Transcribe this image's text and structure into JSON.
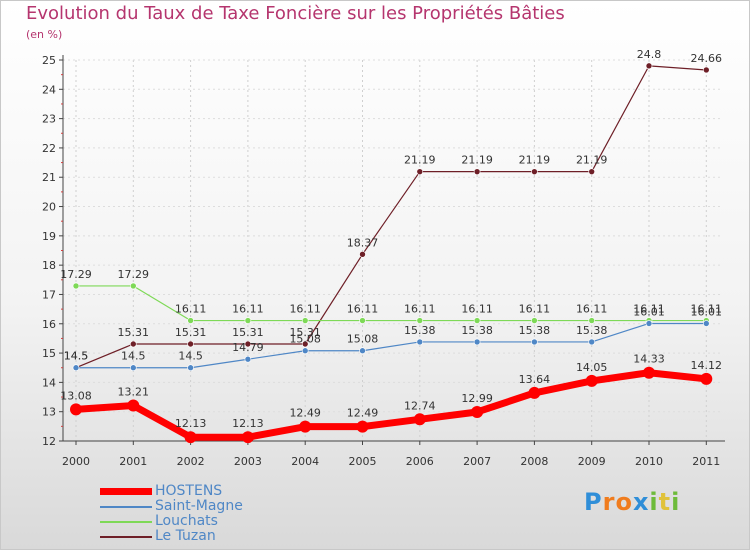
{
  "title": "Evolution du Taux de Taxe Foncière sur les Propriétés Bâties",
  "unit": "(en %)",
  "logo": {
    "text": "Proxiti",
    "letters": [
      "P",
      "r",
      "o",
      "x",
      "i",
      "t",
      "i"
    ],
    "colors": [
      "#2f8ed8",
      "#f07c1e",
      "#f07c1e",
      "#2f8ed8",
      "#6dbb3a",
      "#e0c23a",
      "#6dbb3a"
    ]
  },
  "chart_data": {
    "type": "line",
    "title": "Evolution du Taux de Taxe Foncière sur les Propriétés Bâties",
    "ylabel": "(en %)",
    "xlabel": "",
    "ylim": [
      12,
      25
    ],
    "yticks": [
      "12",
      "13",
      "14",
      "15",
      "16",
      "17",
      "18",
      "19",
      "20",
      "21",
      "22",
      "23",
      "24",
      "25"
    ],
    "categories": [
      "2000",
      "2001",
      "2002",
      "2003",
      "2004",
      "2005",
      "2006",
      "2007",
      "2008",
      "2009",
      "2010",
      "2011"
    ],
    "series": [
      {
        "name": "HOSTENS",
        "color": "#ff0000",
        "values": [
          13.08,
          13.21,
          12.13,
          12.13,
          12.49,
          12.49,
          12.74,
          12.99,
          13.64,
          14.05,
          14.33,
          14.12
        ],
        "labels": [
          "13.08",
          "13.21",
          "12.13",
          "12.13",
          "12.49",
          "12.49",
          "12.74",
          "12.99",
          "13.64",
          "14.05",
          "14.33",
          "14.12"
        ]
      },
      {
        "name": "Saint-Magne",
        "color": "#4f87c6",
        "values": [
          14.5,
          14.5,
          14.5,
          14.79,
          15.08,
          15.08,
          15.38,
          15.38,
          15.38,
          15.38,
          16.01,
          16.01
        ],
        "labels": [
          "14.5",
          "14.5",
          "14.5",
          "14.79",
          "15.08",
          "15.08",
          "15.38",
          "15.38",
          "15.38",
          "15.38",
          "16.01",
          "16.01"
        ]
      },
      {
        "name": "Louchats",
        "color": "#7ed957",
        "values": [
          17.29,
          17.29,
          16.11,
          16.11,
          16.11,
          16.11,
          16.11,
          16.11,
          16.11,
          16.11,
          16.11,
          16.11
        ],
        "labels": [
          "17.29",
          "17.29",
          "16.11",
          "16.11",
          "16.11",
          "16.11",
          "16.11",
          "16.11",
          "16.11",
          "16.11",
          "16.11",
          "16.11"
        ]
      },
      {
        "name": "Le Tuzan",
        "color": "#6e1f27",
        "values": [
          14.5,
          15.31,
          15.31,
          15.31,
          15.31,
          18.37,
          21.19,
          21.19,
          21.19,
          21.19,
          24.8,
          24.66
        ],
        "labels": [
          "14.5",
          "15.31",
          "15.31",
          "15.31",
          "15.31",
          "18.37",
          "21.19",
          "21.19",
          "21.19",
          "21.19",
          "24.8",
          "24.66"
        ]
      }
    ]
  }
}
